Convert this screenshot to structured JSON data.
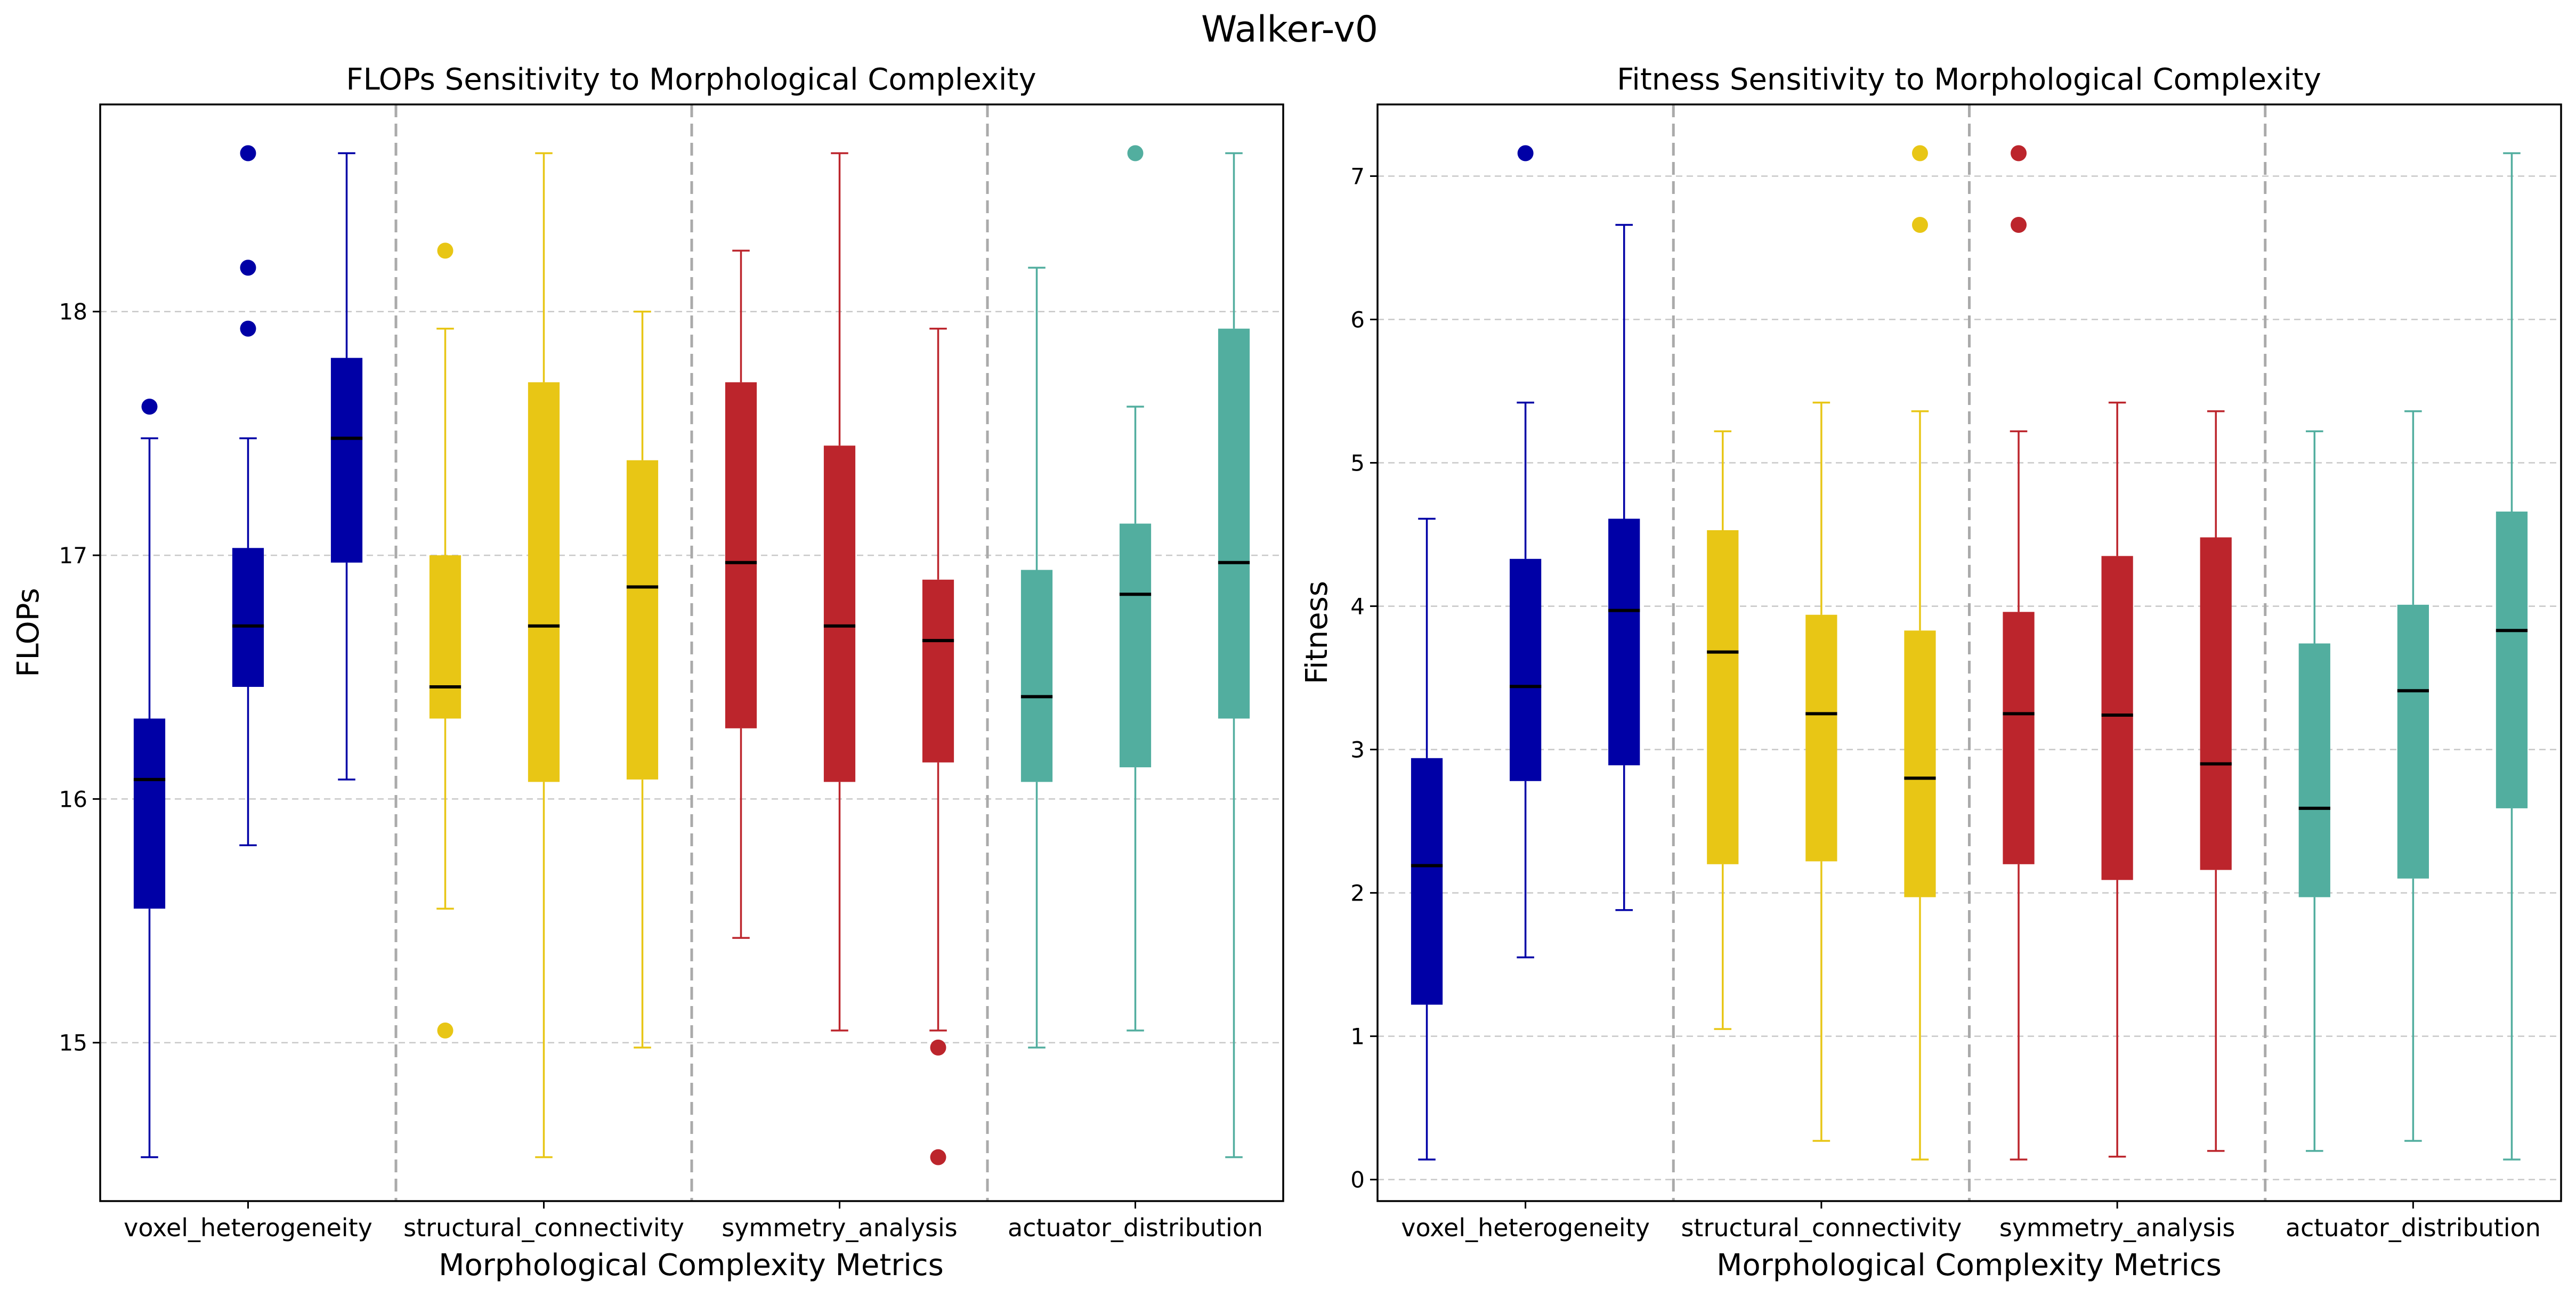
{
  "figure_title": "Walker-v0",
  "chart_data": [
    {
      "type": "box",
      "title": "FLOPs Sensitivity to Morphological Complexity",
      "xlabel": "Morphological Complexity Metrics",
      "ylabel": "FLOPs",
      "ylim": [
        14.35,
        18.85
      ],
      "yticks": [
        15,
        16,
        17,
        18
      ],
      "ytick_labels": [
        "15",
        "16",
        "17",
        "18"
      ],
      "grid": true,
      "groups": [
        {
          "label": "voxel_heterogeneity",
          "color": "#0000a6",
          "boxes": [
            {
              "whisker_low": 14.53,
              "q1": 15.55,
              "median": 16.08,
              "q3": 16.33,
              "whisker_high": 17.48,
              "outliers": [
                17.61
              ]
            },
            {
              "whisker_low": 15.81,
              "q1": 16.46,
              "median": 16.71,
              "q3": 17.03,
              "whisker_high": 17.48,
              "outliers": [
                18.65,
                18.18,
                17.93
              ]
            },
            {
              "whisker_low": 16.08,
              "q1": 16.97,
              "median": 17.48,
              "q3": 17.81,
              "whisker_high": 18.65,
              "outliers": []
            }
          ]
        },
        {
          "label": "structural_connectivity",
          "color": "#e8c615",
          "boxes": [
            {
              "whisker_low": 15.55,
              "q1": 16.33,
              "median": 16.46,
              "q3": 17.0,
              "whisker_high": 17.93,
              "outliers": [
                18.25,
                15.05
              ]
            },
            {
              "whisker_low": 14.53,
              "q1": 16.07,
              "median": 16.71,
              "q3": 17.71,
              "whisker_high": 18.65,
              "outliers": []
            },
            {
              "whisker_low": 14.98,
              "q1": 16.08,
              "median": 16.87,
              "q3": 17.39,
              "whisker_high": 18.0,
              "outliers": []
            }
          ]
        },
        {
          "label": "symmetry_analysis",
          "color": "#bc252c",
          "boxes": [
            {
              "whisker_low": 15.43,
              "q1": 16.29,
              "median": 16.97,
              "q3": 17.71,
              "whisker_high": 18.25,
              "outliers": []
            },
            {
              "whisker_low": 15.05,
              "q1": 16.07,
              "median": 16.71,
              "q3": 17.45,
              "whisker_high": 18.65,
              "outliers": []
            },
            {
              "whisker_low": 15.05,
              "q1": 16.15,
              "median": 16.65,
              "q3": 16.9,
              "whisker_high": 17.93,
              "outliers": [
                14.98,
                14.53
              ]
            }
          ]
        },
        {
          "label": "actuator_distribution",
          "color": "#52ae9f",
          "boxes": [
            {
              "whisker_low": 14.98,
              "q1": 16.07,
              "median": 16.42,
              "q3": 16.94,
              "whisker_high": 18.18,
              "outliers": []
            },
            {
              "whisker_low": 15.05,
              "q1": 16.13,
              "median": 16.84,
              "q3": 17.13,
              "whisker_high": 17.61,
              "outliers": [
                18.65
              ]
            },
            {
              "whisker_low": 14.53,
              "q1": 16.33,
              "median": 16.97,
              "q3": 17.93,
              "whisker_high": 18.65,
              "outliers": []
            }
          ]
        }
      ]
    },
    {
      "type": "box",
      "title": "Fitness Sensitivity to Morphological Complexity",
      "xlabel": "Morphological Complexity Metrics",
      "ylabel": "Fitness",
      "ylim": [
        -0.15,
        7.5
      ],
      "yticks": [
        0,
        1,
        2,
        3,
        4,
        5,
        6,
        7
      ],
      "ytick_labels": [
        "0",
        "1",
        "2",
        "3",
        "4",
        "5",
        "6",
        "7"
      ],
      "grid": true,
      "groups": [
        {
          "label": "voxel_heterogeneity",
          "color": "#0000a6",
          "boxes": [
            {
              "whisker_low": 0.14,
              "q1": 1.22,
              "median": 2.19,
              "q3": 2.94,
              "whisker_high": 4.61,
              "outliers": []
            },
            {
              "whisker_low": 1.55,
              "q1": 2.78,
              "median": 3.44,
              "q3": 4.33,
              "whisker_high": 5.42,
              "outliers": [
                7.16
              ]
            },
            {
              "whisker_low": 1.88,
              "q1": 2.89,
              "median": 3.97,
              "q3": 4.61,
              "whisker_high": 6.66,
              "outliers": []
            }
          ]
        },
        {
          "label": "structural_connectivity",
          "color": "#e8c615",
          "boxes": [
            {
              "whisker_low": 1.05,
              "q1": 2.2,
              "median": 3.68,
              "q3": 4.53,
              "whisker_high": 5.22,
              "outliers": []
            },
            {
              "whisker_low": 0.27,
              "q1": 2.22,
              "median": 3.25,
              "q3": 3.94,
              "whisker_high": 5.42,
              "outliers": []
            },
            {
              "whisker_low": 0.14,
              "q1": 1.97,
              "median": 2.8,
              "q3": 3.83,
              "whisker_high": 5.36,
              "outliers": [
                7.16,
                6.66
              ]
            }
          ]
        },
        {
          "label": "symmetry_analysis",
          "color": "#bc252c",
          "boxes": [
            {
              "whisker_low": 0.14,
              "q1": 2.2,
              "median": 3.25,
              "q3": 3.96,
              "whisker_high": 5.22,
              "outliers": [
                7.16,
                6.66
              ]
            },
            {
              "whisker_low": 0.16,
              "q1": 2.09,
              "median": 3.24,
              "q3": 4.35,
              "whisker_high": 5.42,
              "outliers": []
            },
            {
              "whisker_low": 0.2,
              "q1": 2.16,
              "median": 2.9,
              "q3": 4.48,
              "whisker_high": 5.36,
              "outliers": []
            }
          ]
        },
        {
          "label": "actuator_distribution",
          "color": "#52ae9f",
          "boxes": [
            {
              "whisker_low": 0.2,
              "q1": 1.97,
              "median": 2.59,
              "q3": 3.74,
              "whisker_high": 5.22,
              "outliers": []
            },
            {
              "whisker_low": 0.27,
              "q1": 2.1,
              "median": 3.41,
              "q3": 4.01,
              "whisker_high": 5.36,
              "outliers": []
            },
            {
              "whisker_low": 0.14,
              "q1": 2.59,
              "median": 3.83,
              "q3": 4.66,
              "whisker_high": 7.16,
              "outliers": []
            }
          ]
        }
      ]
    }
  ]
}
